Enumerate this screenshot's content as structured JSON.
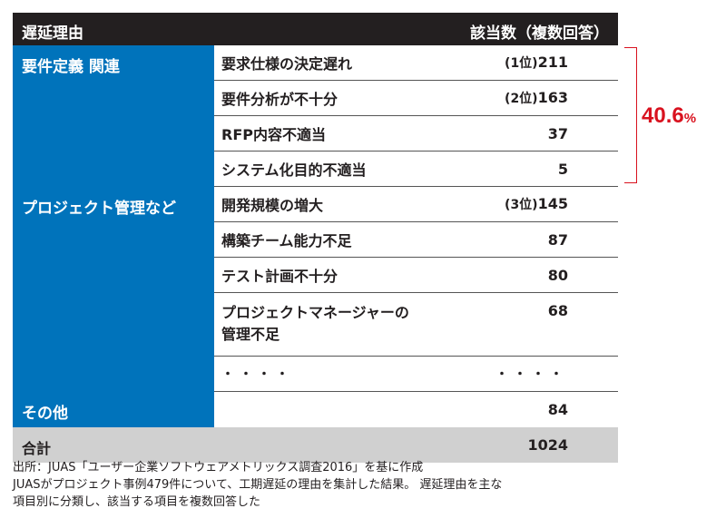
{
  "header": {
    "left": "遅延理由",
    "right": "該当数（複数回答）"
  },
  "groups": [
    {
      "category": "要件定義 関連",
      "items": [
        {
          "name": "要求仕様の決定遅れ",
          "rank": "(1位)",
          "value": "211"
        },
        {
          "name": "要件分析が不十分",
          "rank": "(2位)",
          "value": "163"
        },
        {
          "name": "RFP内容不適当",
          "rank": "",
          "value": "37"
        },
        {
          "name": "システム化目的不適当",
          "rank": "",
          "value": "5"
        }
      ]
    },
    {
      "category": "プロジェクト管理など",
      "items": [
        {
          "name": "開発規模の増大",
          "rank": "(3位)",
          "value": "145"
        },
        {
          "name": "構築チーム能力不足",
          "rank": "",
          "value": "87"
        },
        {
          "name": "テスト計画不十分",
          "rank": "",
          "value": "80"
        },
        {
          "name_line1": "プロジェクトマネージャーの",
          "name_line2": "管理不足",
          "rank": "",
          "value": "68"
        },
        {
          "name": "・・・・",
          "rank": "",
          "value": "・・・・"
        }
      ]
    },
    {
      "category": "その他",
      "items": [
        {
          "name": "",
          "rank": "",
          "value": "84"
        }
      ]
    }
  ],
  "total": {
    "label": "合計",
    "value": "1024"
  },
  "annotation": {
    "number": "40.6",
    "unit": "%",
    "color": "#d9121f"
  },
  "source": {
    "line1": "出所：JUAS「ユーザー企業ソフトウェアメトリックス調査2016」を基に作成",
    "line2": "JUASがプロジェクト事例479件について、工期遅延の理由を集計した結果。 遅延理由を主な",
    "line3": "項目別に分類し、該当する項目を複数回答した"
  },
  "colors": {
    "header_bg": "#231f20",
    "category_bg": "#0073bb",
    "total_bg": "#d0d0d0"
  }
}
